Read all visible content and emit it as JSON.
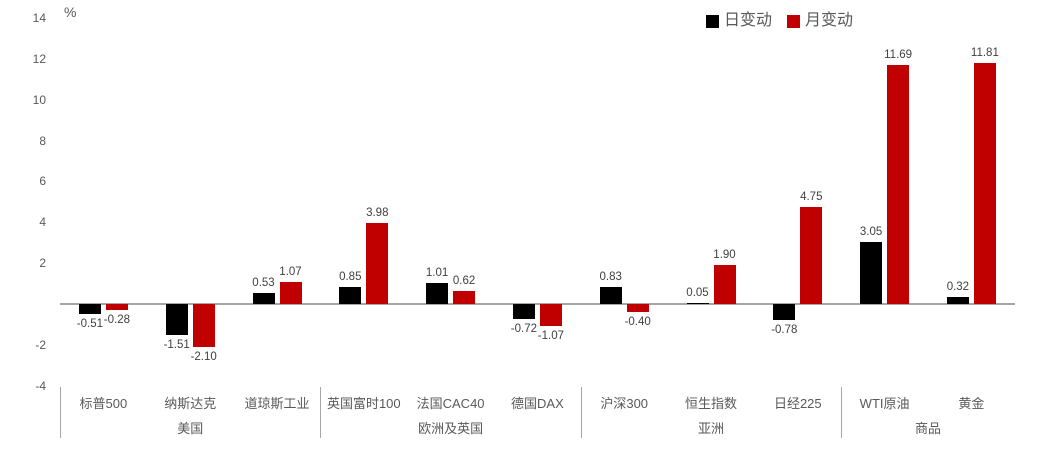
{
  "chart_data": {
    "type": "bar",
    "title": "",
    "unit_label": "%",
    "categories": [
      "标普500",
      "纳斯达克",
      "道琼斯工业",
      "英国富时100",
      "法国CAC40",
      "德国DAX",
      "沪深300",
      "恒生指数",
      "日经225",
      "WTI原油",
      "黄金"
    ],
    "groups": [
      {
        "label": "美国",
        "span": 3
      },
      {
        "label": "欧洲及英国",
        "span": 3
      },
      {
        "label": "亚洲",
        "span": 3
      },
      {
        "label": "商品",
        "span": 2
      }
    ],
    "series": [
      {
        "name": "日变动",
        "color": "#000000",
        "values": [
          -0.51,
          -1.51,
          0.53,
          0.85,
          1.01,
          -0.72,
          0.83,
          0.05,
          -0.78,
          3.05,
          0.32
        ]
      },
      {
        "name": "月变动",
        "color": "#c00000",
        "values": [
          -0.28,
          -2.1,
          1.07,
          3.98,
          0.62,
          -1.07,
          -0.4,
          1.9,
          4.75,
          11.69,
          11.81
        ]
      }
    ],
    "y_axis": {
      "min": -4,
      "max": 14,
      "tick_step": 2,
      "ticks": [
        14,
        12,
        10,
        8,
        6,
        4,
        2,
        -2,
        -4
      ],
      "zero_label_hidden": true
    },
    "value_label_decimals": 2,
    "legend_position": "top-right",
    "grid": false,
    "colors": {
      "axis_line": "#a6a6a6",
      "tick_text": "#595959",
      "value_label_text": "#404040"
    }
  }
}
